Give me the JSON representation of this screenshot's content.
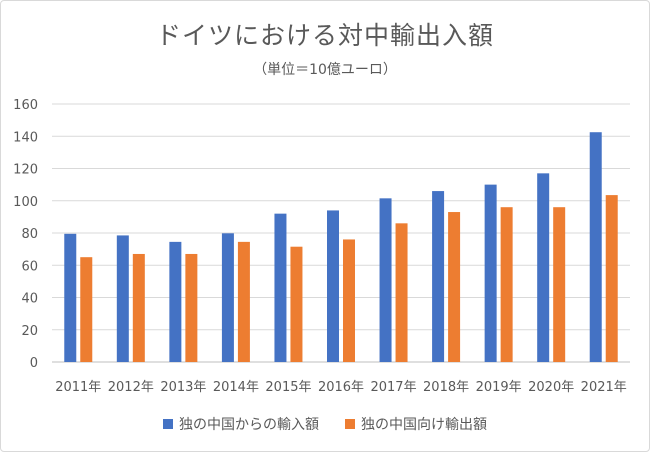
{
  "chart_data": {
    "type": "bar",
    "title": "ドイツにおける対中輸出入額",
    "subtitle": "（単位＝10億ユーロ）",
    "categories": [
      "2011年",
      "2012年",
      "2013年",
      "2014年",
      "2015年",
      "2016年",
      "2017年",
      "2018年",
      "2019年",
      "2020年",
      "2021年"
    ],
    "series": [
      {
        "name": "独の中国からの輸入額",
        "color": "#4472c4",
        "values": [
          79.5,
          78.5,
          74.5,
          79.8,
          92,
          94,
          101.5,
          106,
          110,
          117,
          142.5
        ]
      },
      {
        "name": "独の中国向け輸出額",
        "color": "#ed7d31",
        "values": [
          65,
          67,
          67,
          74.5,
          71.5,
          76,
          86,
          93,
          96,
          96,
          103.5
        ]
      }
    ],
    "ylim": [
      0,
      160
    ],
    "yticks": [
      "0",
      "20",
      "40",
      "60",
      "80",
      "100",
      "120",
      "140",
      "160"
    ],
    "grid": true,
    "legend": "bottom"
  }
}
